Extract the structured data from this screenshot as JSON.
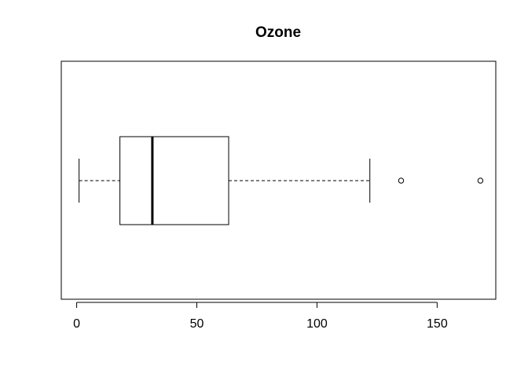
{
  "chart_data": {
    "type": "boxplot",
    "orientation": "horizontal",
    "title": "Ozone",
    "xlabel": "",
    "ylabel": "",
    "xlim": [
      -6.4,
      174.4
    ],
    "xticks": [
      0,
      50,
      100,
      150
    ],
    "xtick_labels": [
      "0",
      "50",
      "100",
      "150"
    ],
    "grid": false,
    "box": {
      "whisker_low": 1,
      "q1": 18,
      "median": 31.5,
      "q3": 63.25,
      "whisker_high": 122,
      "outliers": [
        135,
        168
      ]
    }
  }
}
